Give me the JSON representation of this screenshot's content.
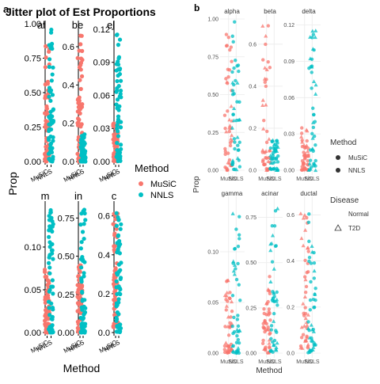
{
  "panel_a": {
    "tag": "a",
    "title": "Jitter plot of Est Proportions",
    "xlabel": "Method",
    "ylabel": "Prop",
    "legend": {
      "title": "Method",
      "items": [
        {
          "label": "MuSiC",
          "color": "#F8766D"
        },
        {
          "label": "NNLS",
          "color": "#00BFC4"
        }
      ]
    }
  },
  "panel_b": {
    "tag": "b",
    "xlabel": "Method",
    "ylabel": "Prop",
    "legend_method": {
      "title": "Method",
      "items": [
        "MuSiC",
        "NNLS"
      ]
    },
    "legend_disease": {
      "title": "Disease",
      "items": [
        "Normal",
        "T2D"
      ]
    }
  },
  "chart_data": [
    {
      "type": "scatter",
      "panel": "a",
      "facets": [
        {
          "strip": "al",
          "categories": [
            "MuSiC",
            "NNLS"
          ],
          "ylim": [
            0,
            1.0
          ],
          "ticks": [
            0.0,
            0.25,
            0.5,
            0.75,
            1.0
          ],
          "tick_labels": [
            "0.00",
            "0.25",
            "0.50",
            "0.75",
            "1.00"
          ],
          "series": [
            {
              "name": "MuSiC",
              "min": 0.0,
              "max": 0.9
            },
            {
              "name": "NNLS",
              "min": 0.0,
              "max": 1.0
            }
          ]
        },
        {
          "strip": "be",
          "categories": [
            "MuSiC",
            "NNLS"
          ],
          "ylim": [
            0,
            0.72
          ],
          "ticks": [
            0.0,
            0.2,
            0.4,
            0.6
          ],
          "tick_labels": [
            "0.0",
            "0.2",
            "0.4",
            "0.6"
          ],
          "series": [
            {
              "name": "MuSiC",
              "min": 0.0,
              "max": 0.7
            },
            {
              "name": "NNLS",
              "min": 0.0,
              "max": 0.15
            }
          ]
        },
        {
          "strip": "el",
          "categories": [
            "MuSiC",
            "NNLS"
          ],
          "ylim": [
            0,
            0.125
          ],
          "ticks": [
            0.0,
            0.03,
            0.06,
            0.09,
            0.12
          ],
          "tick_labels": [
            "0.00",
            "0.03",
            "0.06",
            "0.09",
            "0.12"
          ],
          "series": [
            {
              "name": "MuSiC",
              "min": 0.0,
              "max": 0.035
            },
            {
              "name": "NNLS",
              "min": 0.0,
              "max": 0.12
            }
          ]
        },
        {
          "strip": "m",
          "categories": [
            "MuSiC",
            "NNLS"
          ],
          "ylim": [
            0,
            0.15
          ],
          "ticks": [
            0.0,
            0.05,
            0.1
          ],
          "tick_labels": [
            "0.00",
            "0.05",
            "0.10"
          ],
          "series": [
            {
              "name": "MuSiC",
              "min": 0.0,
              "max": 0.075
            },
            {
              "name": "NNLS",
              "min": 0.0,
              "max": 0.145
            }
          ]
        },
        {
          "strip": "in",
          "categories": [
            "MuSiC",
            "NNLS"
          ],
          "ylim": [
            0,
            0.84
          ],
          "ticks": [
            0.0,
            0.25,
            0.5,
            0.75
          ],
          "tick_labels": [
            "0.00",
            "0.25",
            "0.50",
            "0.75"
          ],
          "series": [
            {
              "name": "MuSiC",
              "min": 0.0,
              "max": 0.45
            },
            {
              "name": "NNLS",
              "min": 0.0,
              "max": 0.82
            }
          ]
        },
        {
          "strip": "c",
          "categories": [
            "MuSiC",
            "NNLS"
          ],
          "ylim": [
            0,
            0.66
          ],
          "ticks": [
            0.0,
            0.2,
            0.4,
            0.6
          ],
          "tick_labels": [
            "0.0",
            "0.2",
            "0.4",
            "0.6"
          ],
          "series": [
            {
              "name": "MuSiC",
              "min": 0.02,
              "max": 0.62
            },
            {
              "name": "NNLS",
              "min": 0.0,
              "max": 0.62
            }
          ]
        }
      ],
      "x_tick_labels": [
        "MuSiC",
        "NNLS"
      ]
    },
    {
      "type": "scatter",
      "panel": "b",
      "facets": [
        {
          "strip": "alpha",
          "categories": [
            "MuSiC",
            "NNLS"
          ],
          "ylim": [
            0,
            1.0
          ],
          "ticks": [
            0.0,
            0.25,
            0.5,
            0.75,
            1.0
          ],
          "tick_labels": [
            "0.00",
            "0.25",
            "0.50",
            "0.75",
            "1.00"
          ],
          "series": [
            {
              "name": "MuSiC",
              "min": 0.0,
              "max": 0.9
            },
            {
              "name": "NNLS",
              "min": 0.0,
              "max": 1.0
            }
          ]
        },
        {
          "strip": "beta",
          "categories": [
            "MuSiC",
            "NNLS"
          ],
          "ylim": [
            0,
            0.72
          ],
          "ticks": [
            0.0,
            0.2,
            0.4,
            0.6
          ],
          "tick_labels": [
            "0.0",
            "0.2",
            "0.4",
            "0.6"
          ],
          "series": [
            {
              "name": "MuSiC",
              "min": 0.0,
              "max": 0.7
            },
            {
              "name": "NNLS",
              "min": 0.0,
              "max": 0.15
            }
          ]
        },
        {
          "strip": "delta",
          "categories": [
            "MuSiC",
            "NNLS"
          ],
          "ylim": [
            0,
            0.125
          ],
          "ticks": [
            0.0,
            0.03,
            0.06,
            0.09,
            0.12
          ],
          "tick_labels": [
            "0.00",
            "0.03",
            "0.06",
            "0.09",
            "0.12"
          ],
          "series": [
            {
              "name": "MuSiC",
              "min": 0.0,
              "max": 0.035
            },
            {
              "name": "NNLS",
              "min": 0.0,
              "max": 0.12
            }
          ]
        },
        {
          "strip": "gamma",
          "categories": [
            "MuSiC",
            "NNLS"
          ],
          "ylim": [
            0,
            0.15
          ],
          "ticks": [
            0.0,
            0.05,
            0.1
          ],
          "tick_labels": [
            "0.00",
            "0.05",
            "0.10"
          ],
          "series": [
            {
              "name": "MuSiC",
              "min": 0.0,
              "max": 0.075
            },
            {
              "name": "NNLS",
              "min": 0.0,
              "max": 0.145
            }
          ]
        },
        {
          "strip": "acinar",
          "categories": [
            "MuSiC",
            "NNLS"
          ],
          "ylim": [
            0,
            0.84
          ],
          "ticks": [
            0.0,
            0.25,
            0.5,
            0.75
          ],
          "tick_labels": [
            "0.00",
            "0.25",
            "0.50",
            "0.75"
          ],
          "series": [
            {
              "name": "MuSiC",
              "min": 0.0,
              "max": 0.45
            },
            {
              "name": "NNLS",
              "min": 0.0,
              "max": 0.82
            }
          ]
        },
        {
          "strip": "ductal",
          "categories": [
            "MuSiC",
            "NNLS"
          ],
          "ylim": [
            0,
            0.66
          ],
          "ticks": [
            0.0,
            0.2,
            0.4,
            0.6
          ],
          "tick_labels": [
            "0.0",
            "0.2",
            "0.4",
            "0.6"
          ],
          "series": [
            {
              "name": "MuSiC",
              "min": 0.02,
              "max": 0.62
            },
            {
              "name": "NNLS",
              "min": 0.0,
              "max": 0.62
            }
          ]
        }
      ],
      "x_tick_labels": [
        "MuSiC",
        "NNLS"
      ],
      "grid": true
    }
  ]
}
